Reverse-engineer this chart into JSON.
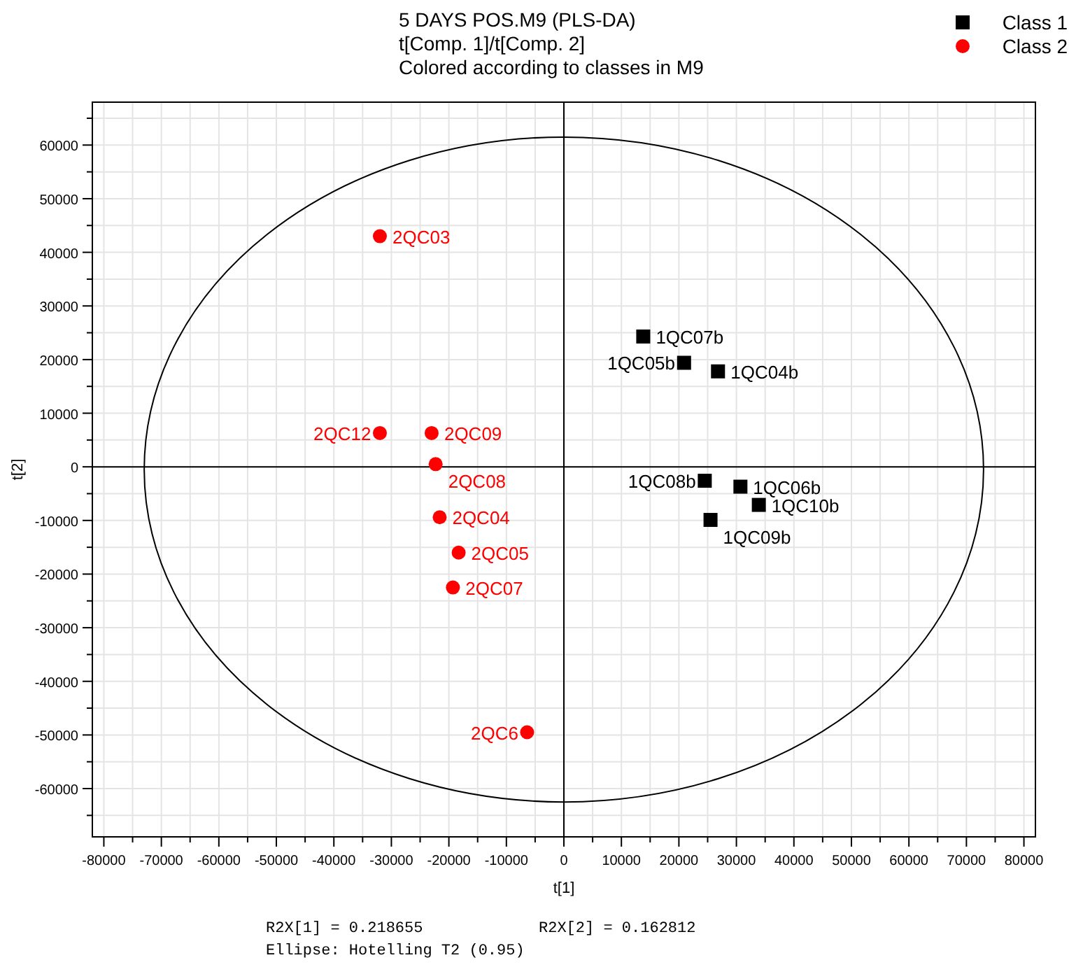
{
  "chart_data": {
    "type": "scatter",
    "title": "5 DAYS POS.M9 (PLS-DA)",
    "subtitle": "t[Comp. 1]/t[Comp. 2]\nColored according to classes in M9",
    "xlabel": "t[1]",
    "ylabel": "t[2]",
    "xlim": [
      -82000,
      82000
    ],
    "ylim": [
      -69000,
      68000
    ],
    "xticks": [
      -80000,
      {
        "value": -75000,
        "label": null
      },
      -70000,
      {
        "value": -65000,
        "label": null
      },
      -60000,
      {
        "value": -55000,
        "label": null
      },
      -50000,
      {
        "value": -45000,
        "label": null
      },
      -40000,
      {
        "value": -35000,
        "label": null
      },
      -30000,
      {
        "value": -25000,
        "label": null
      },
      -20000,
      {
        "value": -15000,
        "label": null
      },
      -10000,
      {
        "value": -5000,
        "label": null
      },
      0,
      {
        "value": 5000,
        "label": null
      },
      10000,
      {
        "value": 15000,
        "label": null
      },
      20000,
      {
        "value": 25000,
        "label": null
      },
      30000,
      {
        "value": 35000,
        "label": null
      },
      40000,
      {
        "value": 45000,
        "label": null
      },
      50000,
      {
        "value": 55000,
        "label": null
      },
      60000,
      {
        "value": 65000,
        "label": null
      },
      70000,
      {
        "value": 75000,
        "label": null
      },
      80000
    ],
    "yticks": [
      {
        "value": -65000,
        "label": null
      },
      -60000,
      {
        "value": -55000,
        "label": null
      },
      -50000,
      {
        "value": -45000,
        "label": null
      },
      -40000,
      {
        "value": -35000,
        "label": null
      },
      -30000,
      {
        "value": -25000,
        "label": null
      },
      -20000,
      {
        "value": -15000,
        "label": null
      },
      -10000,
      {
        "value": -5000,
        "label": null
      },
      0,
      {
        "value": 5000,
        "label": null
      },
      10000,
      {
        "value": 15000,
        "label": null
      },
      20000,
      {
        "value": 25000,
        "label": null
      },
      30000,
      {
        "value": 35000,
        "label": null
      },
      40000,
      {
        "value": 45000,
        "label": null
      },
      50000,
      {
        "value": 55000,
        "label": null
      },
      60000,
      {
        "value": 65000,
        "label": null
      }
    ],
    "grid": true,
    "legend": "top right",
    "series": [
      {
        "name": "Class 1",
        "color": "#000000",
        "marker": "square",
        "x": [
          13800,
          20900,
          26800,
          24500,
          30700,
          33900,
          25500
        ],
        "values": [
          24300,
          19400,
          17800,
          -2600,
          -3700,
          -7100,
          -9900
        ]
      },
      {
        "name": "Class 2",
        "color": "#ff0000",
        "marker": "circle",
        "x": [
          -32000,
          -32000,
          -23000,
          -22300,
          -21600,
          -18300,
          -19300,
          -6400
        ],
        "values": [
          43000,
          6300,
          6300,
          500,
          -9400,
          -16000,
          -22500,
          -49500
        ]
      }
    ],
    "annotations": [
      {
        "text": "1QC07b",
        "x": 13800,
        "y": 24300
      },
      {
        "text": "1QC05b",
        "x": 20900,
        "y": 19400
      },
      {
        "text": "1QC04b",
        "x": 26800,
        "y": 17800
      },
      {
        "text": "1QC08b",
        "x": 24500,
        "y": -2600
      },
      {
        "text": "1QC06b",
        "x": 30700,
        "y": -3700
      },
      {
        "text": "1QC10b",
        "x": 33900,
        "y": -7100
      },
      {
        "text": "1QC09b",
        "x": 25500,
        "y": -9900
      },
      {
        "text": "2QC03",
        "x": -32000,
        "y": 43000
      },
      {
        "text": "2QC12",
        "x": -32000,
        "y": 6300
      },
      {
        "text": "2QC09",
        "x": -23000,
        "y": 6300
      },
      {
        "text": "2QC08",
        "x": -22300,
        "y": 500
      },
      {
        "text": "2QC04",
        "x": -21600,
        "y": -9400
      },
      {
        "text": "2QC05",
        "x": -18300,
        "y": -16000
      },
      {
        "text": "2QC07",
        "x": -19300,
        "y": -22500
      },
      {
        "text": "2QC6",
        "x": -6400,
        "y": -49500
      },
      "R2X[1] = 0.218655",
      "R2X[2] = 0.162812",
      "Ellipse: Hotelling T2 (0.95)"
    ]
  }
}
